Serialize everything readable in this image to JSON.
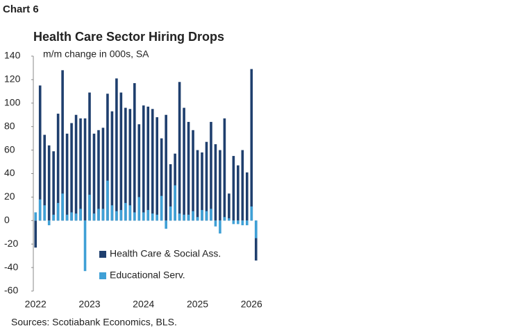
{
  "chart_data": {
    "type": "bar",
    "label": "Chart 6",
    "title": "Health Care Sector Hiring Drops",
    "subtitle": "m/m change in 000s, SA",
    "source": "Sources: Scotiabank Economics, BLS.",
    "categories": [
      "2022",
      null,
      null,
      null,
      null,
      null,
      null,
      null,
      null,
      null,
      null,
      null,
      "2023",
      null,
      null,
      null,
      null,
      null,
      null,
      null,
      null,
      null,
      null,
      null,
      "2024",
      null,
      null,
      null,
      null,
      null,
      null,
      null,
      null,
      null,
      null,
      null,
      "2025",
      null,
      null,
      null,
      null,
      null,
      null,
      null,
      null,
      null,
      null,
      null,
      "2026",
      null
    ],
    "series": [
      {
        "name": "Health Care & Social Ass.",
        "color": "#1f3f6e",
        "values": [
          -23,
          115,
          73,
          64,
          59,
          91,
          128,
          74,
          83,
          90,
          87,
          87,
          109,
          74,
          77,
          79,
          108,
          93,
          121,
          109,
          96,
          95,
          117,
          82,
          98,
          97,
          95,
          88,
          70,
          90,
          48,
          57,
          118,
          96,
          84,
          77,
          60,
          58,
          67,
          84,
          65,
          60,
          87,
          23,
          55,
          47,
          60,
          41,
          129,
          -34
        ]
      },
      {
        "name": "Educational Serv.",
        "color": "#3fa0d6",
        "values": [
          7,
          18,
          13,
          -4,
          5,
          15,
          23,
          5,
          7,
          6,
          10,
          -43,
          22,
          6,
          10,
          10,
          34,
          13,
          8,
          9,
          15,
          13,
          7,
          20,
          7,
          9,
          6,
          5,
          21,
          -7,
          12,
          30,
          6,
          5,
          5,
          8,
          3,
          9,
          8,
          10,
          -5,
          -11,
          3,
          2,
          -3,
          -3,
          -4,
          -4,
          12,
          -15
        ]
      }
    ],
    "ylim": [
      -60,
      140
    ],
    "yticks": [
      -60,
      -40,
      -20,
      0,
      20,
      40,
      60,
      80,
      100,
      120,
      140
    ]
  }
}
